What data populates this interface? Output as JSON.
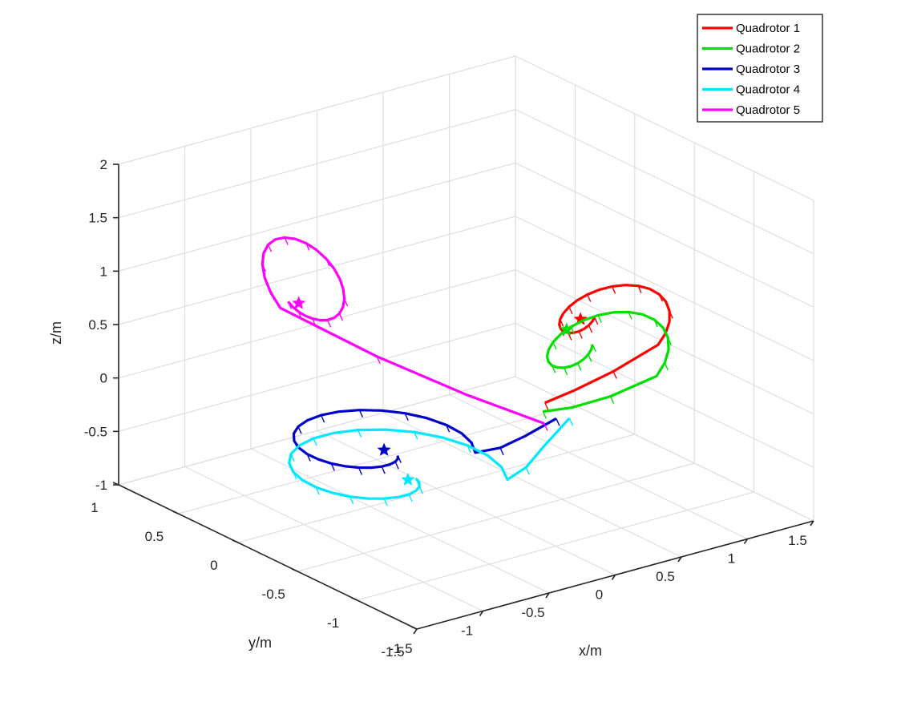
{
  "chart_data": {
    "type": "line3d",
    "title": "",
    "xlabel": "x/m",
    "ylabel": "y/m",
    "zlabel": "z/m",
    "xlim": [
      -1.5,
      1.5
    ],
    "ylim": [
      -1.5,
      1
    ],
    "zlim": [
      -1,
      2
    ],
    "xticks": [
      "-1.5",
      "-1",
      "-0.5",
      "0",
      "0.5",
      "1",
      "1.5"
    ],
    "yticks": [
      "-1.5",
      "-1",
      "-0.5",
      "0",
      "0.5",
      "1"
    ],
    "zticks": [
      "-1",
      "-0.5",
      "0",
      "0.5",
      "1",
      "1.5",
      "2"
    ],
    "grid": true,
    "legend_position": "top-right",
    "series": [
      {
        "name": "Quadrotor 1",
        "color": "#ff0000",
        "kind": "spiral",
        "center": [
          1.02,
          -0.1,
          0.38
        ],
        "start": [
          0.1,
          -0.8,
          0.2
        ],
        "radius": 0.95,
        "turns": 1.1,
        "plane": "xz",
        "final": [
          1.0,
          -0.1,
          0.3
        ]
      },
      {
        "name": "Quadrotor 2",
        "color": "#00e000",
        "kind": "spiral",
        "center": [
          0.78,
          -0.3,
          0.28
        ],
        "start": [
          -0.05,
          -0.95,
          0.25
        ],
        "radius": 1.05,
        "turns": 1.15,
        "plane": "xz",
        "final": [
          0.85,
          -0.15,
          0.28
        ]
      },
      {
        "name": "Quadrotor 3",
        "color": "#0000cc",
        "kind": "spiral",
        "center": [
          -0.45,
          0.1,
          -0.55
        ],
        "start": [
          0.05,
          -0.95,
          0.15
        ],
        "radius": 1.35,
        "turns": 1.1,
        "plane": "xy",
        "final": [
          -0.35,
          0.05,
          -0.55
        ]
      },
      {
        "name": "Quadrotor 4",
        "color": "#00e8ff",
        "kind": "spiral",
        "center": [
          -0.5,
          -0.05,
          -0.7
        ],
        "start": [
          0.15,
          -0.95,
          0.12
        ],
        "radius": 1.6,
        "turns": 1.15,
        "plane": "xy",
        "final": [
          -0.35,
          -0.15,
          -0.72
        ]
      },
      {
        "name": "Quadrotor 5",
        "color": "#ff00ff",
        "kind": "spiral",
        "center": [
          -0.9,
          0.15,
          1.05
        ],
        "start": [
          0.05,
          -0.85,
          0.05
        ],
        "radius": 1.15,
        "turns": 1.1,
        "plane": "yz",
        "final": [
          -0.95,
          0.1,
          1.0
        ]
      }
    ]
  }
}
